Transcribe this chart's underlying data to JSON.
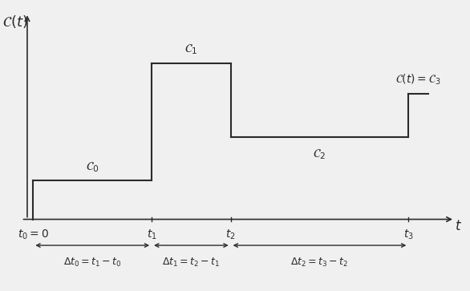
{
  "background_color": "#f0f0f0",
  "line_color": "#2b2b2b",
  "t0": 0.0,
  "t1": 3.0,
  "t2": 5.0,
  "t3": 9.5,
  "c0_level": 0.18,
  "c1_level": 0.72,
  "c2_level": 0.38,
  "c3_level": 0.58,
  "xmax": 11.0,
  "ymax": 1.0,
  "ylabel": "$\\mathcal{C}(t)$",
  "xlabel": "$t$",
  "label_c0": "$\\mathcal{C}_0$",
  "label_c1": "$\\mathcal{C}_1$",
  "label_c2": "$\\mathcal{C}_2$",
  "label_c3": "$\\mathcal{C}(t) = \\mathcal{C}_3$",
  "label_t0": "$t_0 = 0$",
  "label_t1": "$t_1$",
  "label_t2": "$t_2$",
  "label_t3": "$t_3$",
  "label_dt0": "$\\Delta t_0 = t_1 - t_0$",
  "label_dt1": "$\\Delta t_1 = t_2 - t_1$",
  "label_dt2": "$\\Delta t_2 = t_3 - t_2$"
}
